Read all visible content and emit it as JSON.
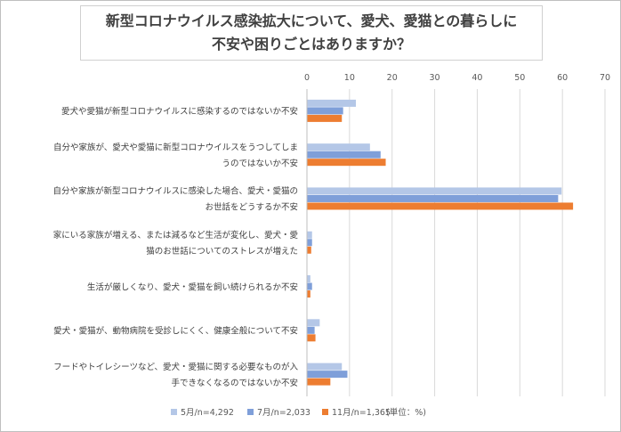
{
  "chart_data": {
    "type": "bar",
    "orientation": "horizontal",
    "title_lines": [
      "新型コロナウイルス感染拡大について、愛犬、愛猫との暮らしに",
      "不安や困りごとはありますか？"
    ],
    "x_ticks": [
      "0",
      "10",
      "20",
      "30",
      "40",
      "50",
      "60",
      "70"
    ],
    "xlim": [
      0,
      70
    ],
    "grid": true,
    "legend_position": "bottom",
    "unit_note": "(単位：%)",
    "categories": [
      [
        "愛犬や愛猫が新型コロナウイルスに感染するのではないか不安"
      ],
      [
        "自分や家族が、愛犬や愛猫に新型コロナウイルスをうつしてしま",
        "うのではないか不安"
      ],
      [
        "自分や家族が新型コロナウイルスに感染した場合、愛犬・愛猫の",
        "お世話をどうするか不安"
      ],
      [
        "家にいる家族が増える、または減るなど生活が変化し、愛犬・愛",
        "猫のお世話についてのストレスが増えた"
      ],
      [
        "生活が厳しくなり、愛犬・愛猫を飼い続けられるか不安"
      ],
      [
        "愛犬・愛猫が、動物病院を受診しにくく、健康全般について不安"
      ],
      [
        "フードやトイレシーツなど、愛犬・愛猫に関する必要なものが入",
        "手できなくなるのではないか不安"
      ]
    ],
    "series": [
      {
        "name": "5月/n=4,292",
        "color": "#b4c7e7",
        "values": [
          11.5,
          14.8,
          59.8,
          1.2,
          0.8,
          3.0,
          8.2
        ]
      },
      {
        "name": "7月/n=2,033",
        "color": "#7f9fd9",
        "values": [
          8.5,
          17.3,
          59.0,
          1.2,
          1.2,
          1.8,
          9.5
        ]
      },
      {
        "name": "11月/n=1,365",
        "color": "#ed7d31",
        "values": [
          8.2,
          18.5,
          62.5,
          1.0,
          0.8,
          2.0,
          5.5
        ]
      }
    ]
  }
}
